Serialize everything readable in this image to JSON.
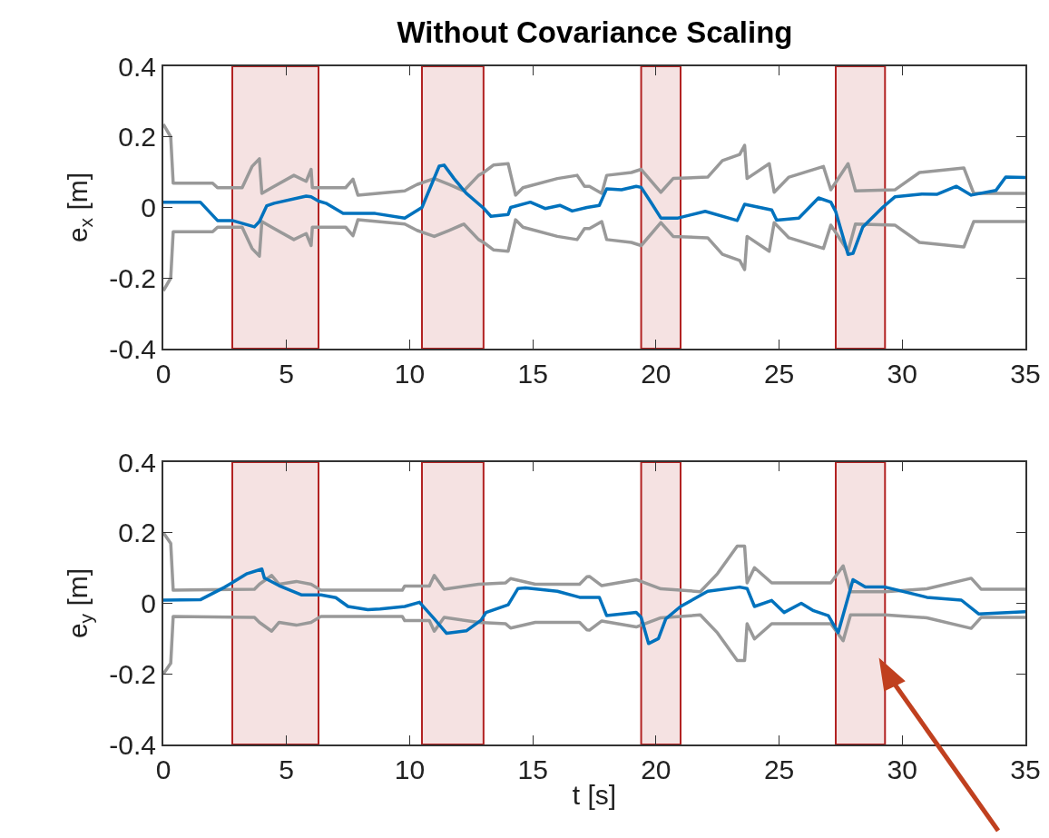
{
  "chart_data": [
    {
      "type": "line",
      "title": "Without Covariance Scaling",
      "ylabel": "e$_{x}$ [m]",
      "xlim": [
        0,
        35
      ],
      "xticks": [
        0,
        5,
        10,
        15,
        20,
        25,
        30,
        35
      ],
      "ylim": [
        -0.4,
        0.4
      ],
      "yticks": [
        -0.4,
        -0.2,
        0,
        0.2,
        0.4
      ],
      "grid": false,
      "bands": [
        {
          "axis": "x",
          "from": 2.8,
          "to": 6.3,
          "color": "#b22222"
        },
        {
          "axis": "x",
          "from": 10.5,
          "to": 13.0,
          "color": "#b22222"
        },
        {
          "axis": "x",
          "from": 19.4,
          "to": 21.0,
          "color": "#b22222"
        },
        {
          "axis": "x",
          "from": 27.3,
          "to": 29.3,
          "color": "#b22222"
        }
      ],
      "series": [
        {
          "color": "#999999",
          "x": [
            0,
            0.3,
            0.4,
            2.0,
            2.2,
            3.2,
            3.6,
            3.9,
            4.0,
            4.4,
            5.3,
            5.8,
            6.0,
            6.05,
            7.4,
            7.7,
            7.9,
            9.8,
            10.3,
            11.0,
            11.6,
            12.2,
            12.8,
            13.0,
            13.4,
            14.0,
            14.3,
            14.6,
            16.0,
            16.8,
            17.1,
            17.3,
            17.8,
            18.0,
            19.0,
            19.4,
            20.2,
            20.7,
            22.1,
            22.7,
            23.4,
            23.6,
            23.7,
            24.6,
            24.8,
            25.4,
            26.8,
            27.1,
            27.8,
            28.1,
            29.7,
            30.7,
            32.5,
            32.9,
            35
          ],
          "values": [
            0.236,
            0.2,
            0.069,
            0.069,
            0.056,
            0.056,
            0.116,
            0.138,
            0.04,
            0.056,
            0.091,
            0.074,
            0.108,
            0.056,
            0.056,
            0.08,
            0.035,
            0.047,
            0.065,
            0.082,
            0.065,
            0.047,
            0.091,
            0.099,
            0.12,
            0.124,
            0.035,
            0.056,
            0.082,
            0.091,
            0.06,
            0.06,
            0.04,
            0.091,
            0.099,
            0.108,
            0.043,
            0.082,
            0.086,
            0.133,
            0.15,
            0.176,
            0.082,
            0.124,
            0.043,
            0.086,
            0.116,
            0.05,
            0.124,
            0.047,
            0.05,
            0.099,
            0.112,
            0.04,
            0.04
          ]
        },
        {
          "color": "#999999",
          "x": [
            0,
            0.3,
            0.4,
            2.0,
            2.2,
            3.2,
            3.6,
            3.9,
            4.0,
            4.4,
            5.3,
            5.8,
            6.0,
            6.05,
            7.4,
            7.7,
            7.9,
            9.8,
            10.3,
            11.0,
            11.6,
            12.2,
            12.8,
            13.0,
            13.4,
            14.0,
            14.3,
            14.6,
            16.0,
            16.8,
            17.1,
            17.3,
            17.8,
            18.0,
            19.0,
            19.4,
            20.2,
            20.7,
            22.1,
            22.7,
            23.4,
            23.6,
            23.7,
            24.6,
            24.8,
            25.4,
            26.8,
            27.1,
            27.8,
            28.1,
            29.7,
            30.7,
            32.5,
            32.9,
            35
          ],
          "values": [
            -0.236,
            -0.2,
            -0.069,
            -0.069,
            -0.056,
            -0.056,
            -0.116,
            -0.138,
            -0.04,
            -0.056,
            -0.091,
            -0.074,
            -0.108,
            -0.056,
            -0.056,
            -0.08,
            -0.035,
            -0.047,
            -0.065,
            -0.082,
            -0.065,
            -0.047,
            -0.091,
            -0.099,
            -0.12,
            -0.124,
            -0.035,
            -0.056,
            -0.082,
            -0.091,
            -0.06,
            -0.06,
            -0.04,
            -0.091,
            -0.099,
            -0.108,
            -0.043,
            -0.082,
            -0.086,
            -0.133,
            -0.15,
            -0.176,
            -0.082,
            -0.124,
            -0.043,
            -0.086,
            -0.116,
            -0.05,
            -0.124,
            -0.047,
            -0.05,
            -0.099,
            -0.112,
            -0.04,
            -0.04
          ]
        },
        {
          "color": "#0072bd",
          "x": [
            0,
            1.5,
            2.2,
            2.8,
            3.7,
            3.9,
            4.2,
            4.5,
            5.8,
            6.0,
            6.3,
            6.6,
            7.3,
            8.6,
            9.8,
            10.5,
            11.2,
            11.4,
            11.8,
            12.3,
            13.0,
            13.3,
            14.0,
            14.1,
            14.9,
            15.5,
            16.1,
            16.6,
            17.2,
            17.7,
            18.0,
            18.6,
            19.2,
            19.4,
            19.8,
            20.2,
            20.9,
            22.0,
            23.3,
            23.6,
            24.7,
            24.9,
            25.8,
            26.6,
            27.1,
            27.3,
            27.8,
            28.0,
            28.4,
            29.2,
            29.7,
            30.8,
            31.4,
            32.2,
            32.8,
            33.8,
            34.2,
            35
          ],
          "values": [
            0.015,
            0.015,
            -0.037,
            -0.037,
            -0.055,
            -0.04,
            0.005,
            0.012,
            0.032,
            0.03,
            0.018,
            0.012,
            -0.017,
            -0.017,
            -0.03,
            0,
            0.117,
            0.12,
            0.082,
            0.04,
            -0.002,
            -0.025,
            -0.02,
            0,
            0.015,
            -0.003,
            0.006,
            -0.01,
            0,
            0.006,
            0.053,
            0.05,
            0.06,
            0.057,
            0.014,
            -0.03,
            -0.03,
            -0.011,
            -0.037,
            0.009,
            -0.007,
            -0.036,
            -0.03,
            0.027,
            0.015,
            -0.012,
            -0.133,
            -0.13,
            -0.055,
            0,
            0.03,
            0.038,
            0.037,
            0.06,
            0.035,
            0.048,
            0.086,
            0.085
          ]
        }
      ]
    },
    {
      "type": "line",
      "xlabel": "t [s]",
      "ylabel": "e$_{y}$ [m]",
      "xlim": [
        0,
        35
      ],
      "xticks": [
        0,
        5,
        10,
        15,
        20,
        25,
        30,
        35
      ],
      "ylim": [
        -0.4,
        0.4
      ],
      "yticks": [
        -0.4,
        -0.2,
        0,
        0.2,
        0.4
      ],
      "grid": false,
      "bands": [
        {
          "axis": "x",
          "from": 2.8,
          "to": 6.3,
          "color": "#b22222"
        },
        {
          "axis": "x",
          "from": 10.5,
          "to": 13.0,
          "color": "#b22222"
        },
        {
          "axis": "x",
          "from": 19.4,
          "to": 21.0,
          "color": "#b22222"
        },
        {
          "axis": "x",
          "from": 27.3,
          "to": 29.3,
          "color": "#b22222"
        }
      ],
      "series": [
        {
          "color": "#999999",
          "x": [
            0,
            0.3,
            0.4,
            3.7,
            3.9,
            4.4,
            4.7,
            5.4,
            6.0,
            6.4,
            9.7,
            9.8,
            10.8,
            11.0,
            11.4,
            12.8,
            13.9,
            14.1,
            15.1,
            16.9,
            17.2,
            17.3,
            17.8,
            19.2,
            20.2,
            21.8,
            22.5,
            23.3,
            23.6,
            23.7,
            24.0,
            24.7,
            27.1,
            27.6,
            27.9,
            29.3,
            31.0,
            32.8,
            33.2,
            35
          ],
          "values": [
            0.2,
            0.17,
            0.037,
            0.04,
            0.054,
            0.079,
            0.054,
            0.062,
            0.054,
            0.037,
            0.037,
            0.049,
            0.049,
            0.079,
            0.04,
            0.054,
            0.058,
            0.07,
            0.054,
            0.054,
            0.075,
            0.076,
            0.05,
            0.067,
            0.041,
            0.033,
            0.084,
            0.162,
            0.162,
            0.058,
            0.101,
            0.058,
            0.058,
            0.106,
            0.033,
            0.033,
            0.041,
            0.071,
            0.04,
            0.04
          ]
        },
        {
          "color": "#999999",
          "x": [
            0,
            0.3,
            0.4,
            3.7,
            3.9,
            4.4,
            4.7,
            5.4,
            6.0,
            6.4,
            9.7,
            9.8,
            10.8,
            11.0,
            11.4,
            12.8,
            13.9,
            14.1,
            15.1,
            16.9,
            17.2,
            17.3,
            17.8,
            19.2,
            20.2,
            21.8,
            22.5,
            23.3,
            23.6,
            23.7,
            24.0,
            24.7,
            27.1,
            27.6,
            27.9,
            29.3,
            31.0,
            32.8,
            33.2,
            35
          ],
          "values": [
            -0.2,
            -0.17,
            -0.037,
            -0.04,
            -0.054,
            -0.079,
            -0.054,
            -0.062,
            -0.054,
            -0.037,
            -0.037,
            -0.049,
            -0.049,
            -0.079,
            -0.04,
            -0.054,
            -0.058,
            -0.07,
            -0.054,
            -0.054,
            -0.075,
            -0.076,
            -0.05,
            -0.067,
            -0.041,
            -0.033,
            -0.084,
            -0.162,
            -0.162,
            -0.058,
            -0.101,
            -0.058,
            -0.058,
            -0.106,
            -0.033,
            -0.033,
            -0.041,
            -0.071,
            -0.04,
            -0.04
          ]
        },
        {
          "color": "#0072bd",
          "x": [
            0,
            1.5,
            2.5,
            3.4,
            4.0,
            4.1,
            4.7,
            5.6,
            6.4,
            7.0,
            7.5,
            8.3,
            8.8,
            9.8,
            10.4,
            11.0,
            11.5,
            12.3,
            12.9,
            13.1,
            14.0,
            14.4,
            14.7,
            16.0,
            16.9,
            17.7,
            18.0,
            19.2,
            19.4,
            19.7,
            20.1,
            20.4,
            21.0,
            22.1,
            23.4,
            23.7,
            24.0,
            24.7,
            25.2,
            25.9,
            26.4,
            27.0,
            27.4,
            28.0,
            28.5,
            29.3,
            31.0,
            32.4,
            33.1,
            35
          ],
          "values": [
            0.009,
            0.01,
            0.046,
            0.084,
            0.097,
            0.072,
            0.05,
            0.024,
            0.024,
            0.016,
            -0.009,
            -0.018,
            -0.016,
            -0.009,
            0.003,
            -0.044,
            -0.085,
            -0.078,
            -0.048,
            -0.026,
            -0.004,
            0.042,
            0.044,
            0.034,
            0.017,
            0.017,
            -0.035,
            -0.026,
            -0.04,
            -0.114,
            -0.1,
            -0.044,
            -0.009,
            0.034,
            0.046,
            0.042,
            -0.009,
            0.008,
            -0.026,
            0,
            -0.021,
            -0.035,
            -0.083,
            0.067,
            0.046,
            0.046,
            0.017,
            0.009,
            -0.03,
            -0.024
          ]
        }
      ]
    }
  ]
}
